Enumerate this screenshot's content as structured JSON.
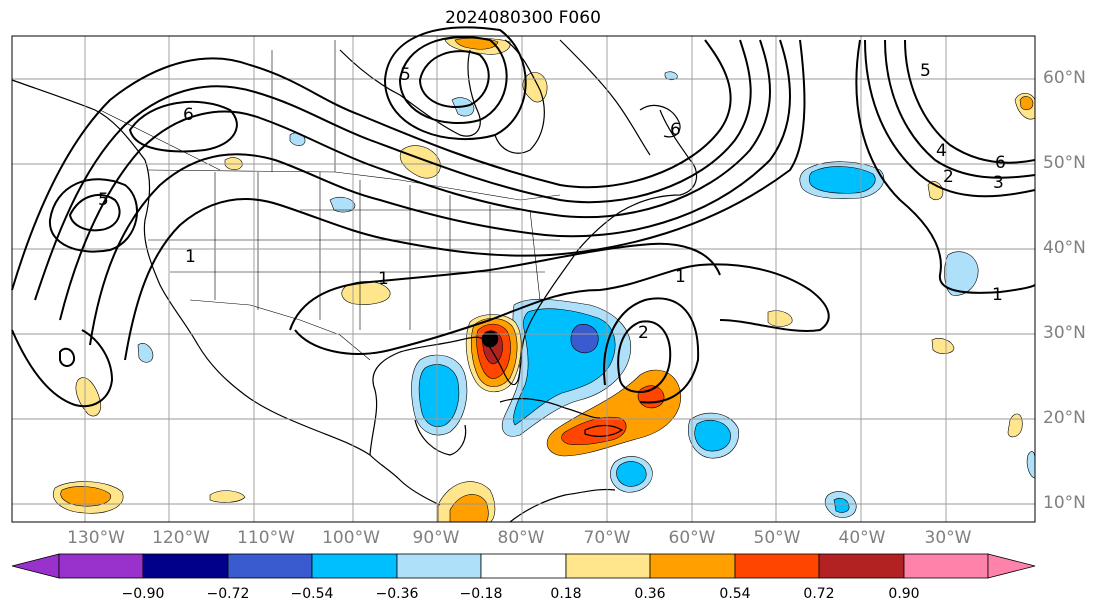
{
  "title": "2024080300 F060",
  "lat_labels": [
    "60°N",
    "50°N",
    "40°N",
    "30°N",
    "20°N",
    "10°N"
  ],
  "lon_labels": [
    "130°W",
    "120°W",
    "110°W",
    "100°W",
    "90°W",
    "80°W",
    "70°W",
    "60°W",
    "50°W",
    "40°W",
    "30°W"
  ],
  "contour_labels": [
    "1",
    "1",
    "1",
    "1",
    "2",
    "2",
    "3",
    "4",
    "5",
    "5",
    "5",
    "6",
    "6",
    "6"
  ],
  "colorbar": {
    "ticks": [
      "−0.90",
      "−0.72",
      "−0.54",
      "−0.36",
      "−0.18",
      "0.18",
      "0.36",
      "0.54",
      "0.72",
      "0.90"
    ],
    "colors": [
      "#9932cc",
      "#00008b",
      "#3a5bd0",
      "#00bfff",
      "#aee0fa",
      "#ffffff",
      "#ffe68c",
      "#ffa000",
      "#ff4500",
      "#b22222",
      "#ff82ab"
    ]
  },
  "colors": {
    "positive_strong": "#ff4500",
    "positive_mid": "#ffa000",
    "positive_weak": "#ffe68c",
    "negative_weak": "#aee0fa",
    "negative_mid": "#00bfff",
    "negative_strong": "#3a5bd0",
    "max_red": "#b22222"
  }
}
